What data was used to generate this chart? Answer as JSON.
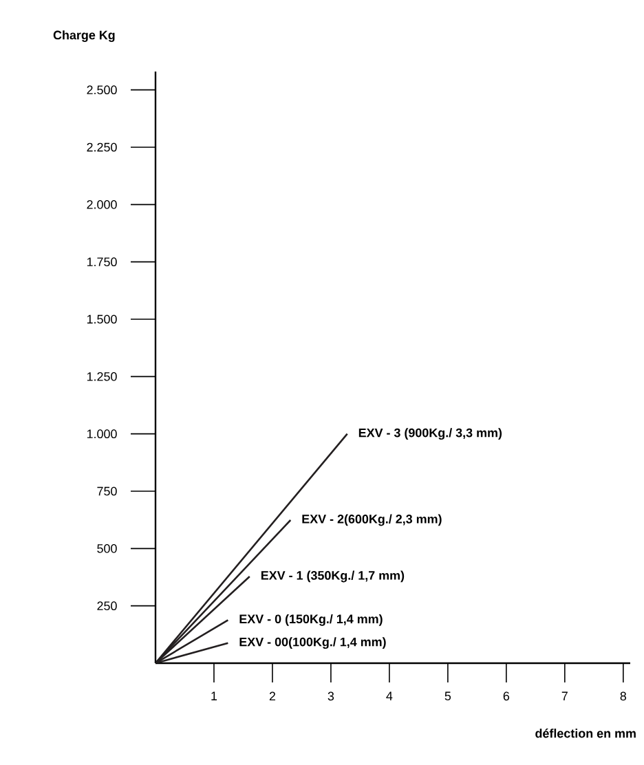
{
  "chart_data": {
    "type": "line",
    "xlabel": "déflection en mm",
    "ylabel": "Charge Kg",
    "xlim": [
      0,
      8.12
    ],
    "ylim": [
      0,
      2580
    ],
    "xticks": [
      1,
      2,
      3,
      4,
      5,
      6,
      7,
      8
    ],
    "yticks": [
      {
        "value": 250,
        "label": "250"
      },
      {
        "value": 500,
        "label": "500"
      },
      {
        "value": 750,
        "label": "750"
      },
      {
        "value": 1000,
        "label": "1.000"
      },
      {
        "value": 1250,
        "label": "1.250"
      },
      {
        "value": 1500,
        "label": "1.500"
      },
      {
        "value": 1750,
        "label": "1.750"
      },
      {
        "value": 2000,
        "label": "2.000"
      },
      {
        "value": 2250,
        "label": "2.250"
      },
      {
        "value": 2500,
        "label": "2.500"
      }
    ],
    "grid": false,
    "legend": false,
    "marker": "none",
    "line_style": "solid",
    "series": [
      {
        "name": "EXV - 3 (900Kg./ 3,3 mm)",
        "color": "#231f20",
        "x": [
          0,
          3.28
        ],
        "values": [
          0,
          1000
        ]
      },
      {
        "name": "EXV - 2(600Kg./ 2,3 mm)",
        "color": "#231f20",
        "x": [
          0,
          2.31
        ],
        "values": [
          0,
          624
        ]
      },
      {
        "name": "EXV - 1 (350Kg./ 1,7 mm)",
        "color": "#231f20",
        "x": [
          0,
          1.61
        ],
        "values": [
          0,
          378
        ]
      },
      {
        "name": "EXV - 0 (150Kg./ 1,4 mm)",
        "color": "#231f20",
        "x": [
          0,
          1.24
        ],
        "values": [
          0,
          188
        ]
      },
      {
        "name": "EXV - 00(100Kg./ 1,4 mm)",
        "color": "#231f20",
        "x": [
          0,
          1.24
        ],
        "values": [
          0,
          88
        ]
      }
    ]
  }
}
